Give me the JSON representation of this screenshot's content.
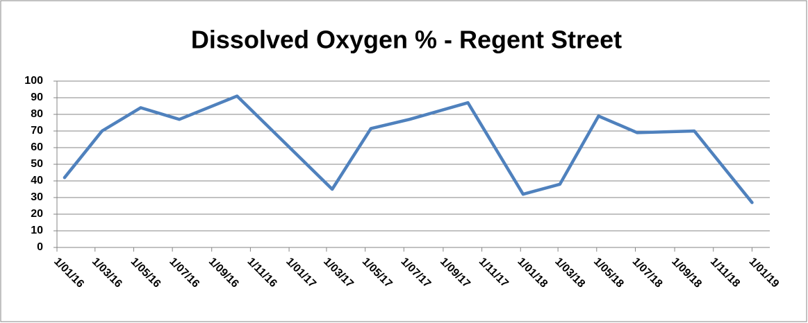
{
  "chart_data": {
    "type": "line",
    "title": "Dissolved Oxygen % - Regent Street",
    "x": [
      "2016-01-13",
      "2016-03-12",
      "2016-05-12",
      "2016-07-12",
      "2016-10-11",
      "2017-03-10",
      "2017-05-10",
      "2017-07-10",
      "2017-10-10",
      "2018-01-05",
      "2018-03-04",
      "2018-05-04",
      "2018-07-04",
      "2018-10-02",
      "2019-01-01"
    ],
    "series": [
      {
        "name": "Dissolved Oxygen %",
        "color": "#4f81bd",
        "values": [
          42,
          70,
          84,
          77,
          91,
          35,
          71.5,
          77,
          87,
          32,
          38,
          79,
          69,
          70,
          27
        ]
      }
    ],
    "xlim": [
      "2016-01-01",
      "2019-01-29"
    ],
    "xticks": [
      {
        "value": "2016-01-01",
        "label": "1/01/16"
      },
      {
        "value": "2016-03-01",
        "label": "1/03/16"
      },
      {
        "value": "2016-05-01",
        "label": "1/05/16"
      },
      {
        "value": "2016-07-01",
        "label": "1/07/16"
      },
      {
        "value": "2016-09-01",
        "label": "1/09/16"
      },
      {
        "value": "2016-11-01",
        "label": "1/11/16"
      },
      {
        "value": "2017-01-01",
        "label": "1/01/17"
      },
      {
        "value": "2017-03-01",
        "label": "1/03/17"
      },
      {
        "value": "2017-05-01",
        "label": "1/05/17"
      },
      {
        "value": "2017-07-01",
        "label": "1/07/17"
      },
      {
        "value": "2017-09-01",
        "label": "1/09/17"
      },
      {
        "value": "2017-11-01",
        "label": "1/11/17"
      },
      {
        "value": "2018-01-01",
        "label": "1/01/18"
      },
      {
        "value": "2018-03-01",
        "label": "1/03/18"
      },
      {
        "value": "2018-05-01",
        "label": "1/05/18"
      },
      {
        "value": "2018-07-01",
        "label": "1/07/18"
      },
      {
        "value": "2018-09-01",
        "label": "1/09/18"
      },
      {
        "value": "2018-11-01",
        "label": "1/11/18"
      },
      {
        "value": "2019-01-01",
        "label": "1/01/19"
      }
    ],
    "ylim": [
      0,
      100
    ],
    "yticks": [
      0,
      10,
      20,
      30,
      40,
      50,
      60,
      70,
      80,
      90,
      100
    ],
    "grid": true
  }
}
